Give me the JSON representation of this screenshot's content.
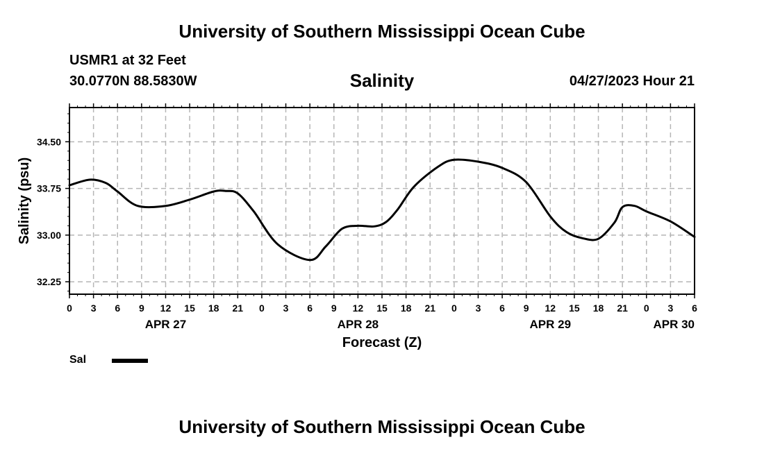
{
  "header": {
    "title": "University of Southern Mississippi Ocean Cube",
    "station": "USMR1 at 32 Feet",
    "coordinates": "30.0770N  88.5830W",
    "timestamp": "04/27/2023 Hour 21"
  },
  "footer": {
    "title": "University of Southern Mississippi Ocean Cube"
  },
  "legend": {
    "label": "Sal",
    "color": "#000000"
  },
  "chart_data": {
    "type": "line",
    "title": "Salinity",
    "xlabel": "Forecast (Z)",
    "ylabel": "Salinity (psu)",
    "x_unit": "hours from APR 27 00Z",
    "xlim": [
      0,
      78
    ],
    "ylim": [
      32.05,
      35.05
    ],
    "grid": true,
    "x_ticks": [
      0,
      3,
      6,
      9,
      12,
      15,
      18,
      21,
      24,
      27,
      30,
      33,
      36,
      39,
      42,
      45,
      48,
      51,
      54,
      57,
      60,
      63,
      66,
      69,
      72,
      75,
      78
    ],
    "x_tick_labels": [
      "0",
      "3",
      "6",
      "9",
      "12",
      "15",
      "18",
      "21",
      "0",
      "3",
      "6",
      "9",
      "12",
      "15",
      "18",
      "21",
      "0",
      "3",
      "6",
      "9",
      "12",
      "15",
      "18",
      "21",
      "0",
      "3",
      "6"
    ],
    "y_ticks": [
      32.25,
      33.0,
      33.75,
      34.5
    ],
    "y_tick_labels": [
      "32.25",
      "33.00",
      "33.75",
      "34.50"
    ],
    "day_labels": [
      {
        "hour": 12,
        "label": "APR 27"
      },
      {
        "hour": 36,
        "label": "APR 28"
      },
      {
        "hour": 60,
        "label": "APR 29"
      },
      {
        "hour": 78,
        "label": "APR 30"
      }
    ],
    "series": [
      {
        "name": "Sal",
        "color": "#000000",
        "x": [
          0,
          2.5,
          4.5,
          6,
          8.5,
          12,
          15,
          18,
          19.5,
          21,
          23,
          26,
          30,
          32,
          34,
          36,
          38,
          39.5,
          41,
          43,
          46,
          48,
          51,
          54,
          57,
          60,
          62,
          64,
          66,
          68,
          69,
          70.5,
          72,
          75,
          78
        ],
        "values": [
          33.8,
          33.89,
          33.84,
          33.7,
          33.47,
          33.47,
          33.57,
          33.7,
          33.71,
          33.67,
          33.38,
          32.85,
          32.6,
          32.82,
          33.1,
          33.15,
          33.14,
          33.21,
          33.42,
          33.78,
          34.1,
          34.21,
          34.18,
          34.08,
          33.85,
          33.3,
          33.05,
          32.95,
          32.94,
          33.2,
          33.45,
          33.47,
          33.38,
          33.22,
          32.97
        ]
      }
    ]
  }
}
